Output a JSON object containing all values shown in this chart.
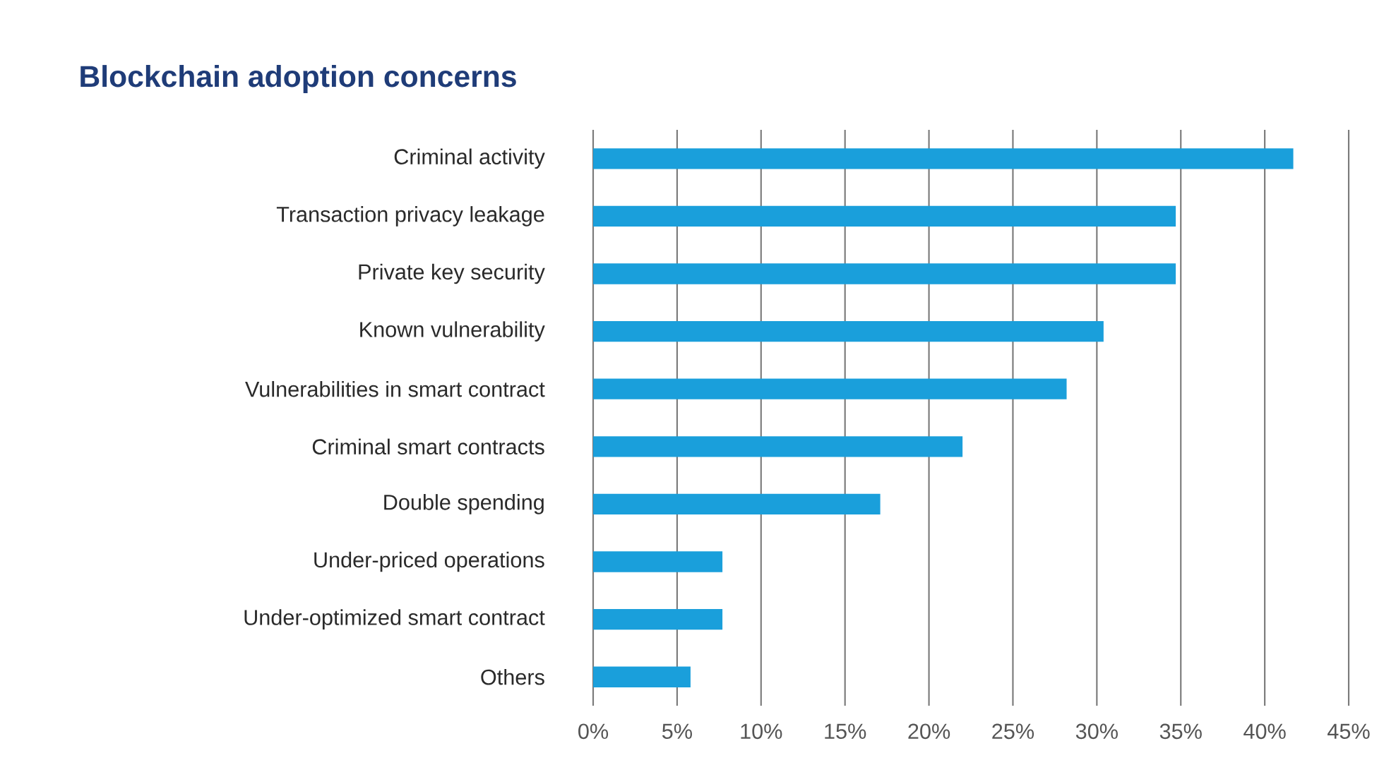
{
  "chart_data": {
    "type": "bar",
    "orientation": "horizontal",
    "title": "Blockchain adoption concerns",
    "categories": [
      "Criminal activity",
      "Transaction privacy leakage",
      "Private key security",
      "Known vulnerability",
      "Vulnerabilities in smart contract",
      "Criminal smart contracts",
      "Double spending",
      "Under-priced operations",
      "Under-optimized smart contract",
      "Others"
    ],
    "values": [
      41.7,
      34.7,
      34.7,
      30.4,
      28.2,
      22,
      17.1,
      7.7,
      7.7,
      5.8
    ],
    "color": "#1a9fdb",
    "xlim": [
      0,
      45
    ],
    "xticks": [
      {
        "value": 0,
        "label": "0%"
      },
      {
        "value": 5,
        "label": "5%"
      },
      {
        "value": 10,
        "label": "10%"
      },
      {
        "value": 15,
        "label": "15%"
      },
      {
        "value": 20,
        "label": "20%"
      },
      {
        "value": 25,
        "label": "25%"
      },
      {
        "value": 30,
        "label": "30%"
      },
      {
        "value": 35,
        "label": "35%"
      },
      {
        "value": 40,
        "label": "40%"
      },
      {
        "value": 45,
        "label": "45%"
      }
    ],
    "grid": "x"
  }
}
